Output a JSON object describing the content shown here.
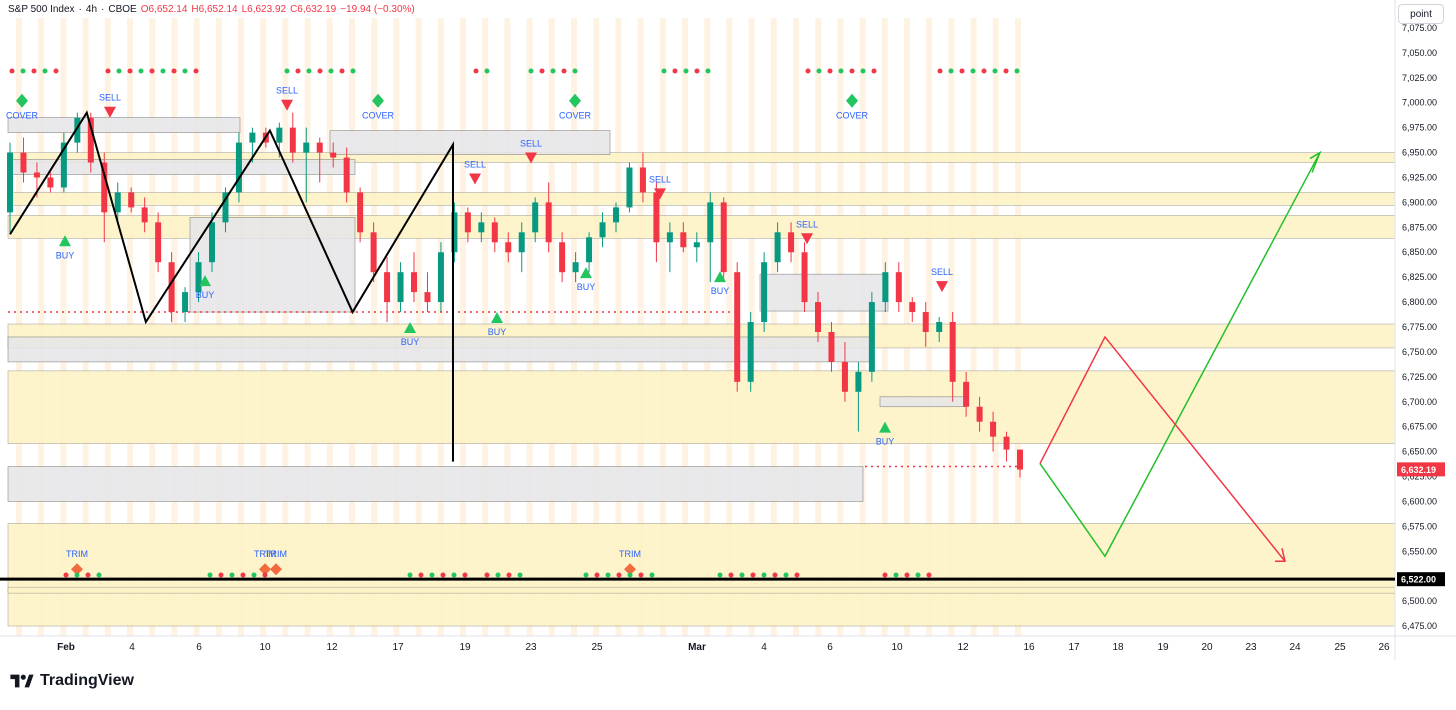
{
  "header": {
    "symbol": "S&P 500 Index",
    "interval": "4h",
    "exchange": "CBOE",
    "open": "O6,652.14",
    "high": "H6,652.14",
    "low": "L6,623.92",
    "close": "C6,632.19",
    "change": "−19.94 (−0.30%)"
  },
  "toolbar": {
    "scale_label": "point"
  },
  "brand": {
    "name": "TradingView"
  },
  "colors": {
    "up": "#089981",
    "down": "#f23645",
    "zone_yellow": "#fdf3c4",
    "zone_gray": "#e6e6e9",
    "zigzag": "#000000",
    "projection_green": "#22c02a",
    "projection_red": "#f23645",
    "support": "#000000"
  },
  "chart_data": {
    "type": "candlestick",
    "interval": "4h",
    "yaxis": {
      "ticks": [
        "7,075.00",
        "7,050.00",
        "7,025.00",
        "7,000.00",
        "6,975.00",
        "6,950.00",
        "6,925.00",
        "6,900.00",
        "6,875.00",
        "6,850.00",
        "6,825.00",
        "6,800.00",
        "6,775.00",
        "6,750.00",
        "6,725.00",
        "6,700.00",
        "6,675.00",
        "6,650.00",
        "6,625.00",
        "6,600.00",
        "6,575.00",
        "6,550.00",
        "6,525.00",
        "6,500.00",
        "6,475.00"
      ],
      "range": [
        6465,
        7085
      ],
      "last_price_label": "6,632.19",
      "support_label": "6,522.00"
    },
    "xaxis": {
      "labels": [
        "Feb",
        "4",
        "6",
        "10",
        "12",
        "17",
        "19",
        "23",
        "25",
        "Mar",
        "4",
        "6",
        "10",
        "12",
        "16",
        "17",
        "18",
        "19",
        "20",
        "23",
        "24",
        "25",
        "26"
      ]
    },
    "candles": [
      [
        6890,
        6960,
        6870,
        6950
      ],
      [
        6950,
        6965,
        6920,
        6930
      ],
      [
        6930,
        6940,
        6905,
        6925
      ],
      [
        6925,
        6930,
        6910,
        6915
      ],
      [
        6915,
        6970,
        6910,
        6960
      ],
      [
        6960,
        6990,
        6950,
        6985
      ],
      [
        6985,
        6990,
        6930,
        6940
      ],
      [
        6940,
        6950,
        6860,
        6890
      ],
      [
        6890,
        6920,
        6880,
        6910
      ],
      [
        6910,
        6915,
        6890,
        6895
      ],
      [
        6895,
        6905,
        6870,
        6880
      ],
      [
        6880,
        6890,
        6830,
        6840
      ],
      [
        6840,
        6850,
        6780,
        6790
      ],
      [
        6790,
        6815,
        6780,
        6810
      ],
      [
        6810,
        6850,
        6800,
        6840
      ],
      [
        6840,
        6890,
        6830,
        6880
      ],
      [
        6880,
        6915,
        6870,
        6910
      ],
      [
        6910,
        6970,
        6900,
        6960
      ],
      [
        6960,
        6975,
        6940,
        6970
      ],
      [
        6970,
        6975,
        6955,
        6960
      ],
      [
        6960,
        6980,
        6945,
        6975
      ],
      [
        6975,
        6990,
        6940,
        6950
      ],
      [
        6950,
        6975,
        6900,
        6960
      ],
      [
        6960,
        6965,
        6920,
        6950
      ],
      [
        6950,
        6960,
        6935,
        6945
      ],
      [
        6945,
        6955,
        6900,
        6910
      ],
      [
        6910,
        6915,
        6860,
        6870
      ],
      [
        6870,
        6880,
        6820,
        6830
      ],
      [
        6830,
        6845,
        6780,
        6800
      ],
      [
        6800,
        6840,
        6790,
        6830
      ],
      [
        6830,
        6850,
        6800,
        6810
      ],
      [
        6810,
        6830,
        6790,
        6800
      ],
      [
        6800,
        6860,
        6790,
        6850
      ],
      [
        6850,
        6900,
        6840,
        6890
      ],
      [
        6890,
        6895,
        6860,
        6870
      ],
      [
        6870,
        6890,
        6860,
        6880
      ],
      [
        6880,
        6885,
        6850,
        6860
      ],
      [
        6860,
        6870,
        6840,
        6850
      ],
      [
        6850,
        6880,
        6830,
        6870
      ],
      [
        6870,
        6905,
        6860,
        6900
      ],
      [
        6900,
        6920,
        6850,
        6860
      ],
      [
        6860,
        6870,
        6820,
        6830
      ],
      [
        6830,
        6850,
        6820,
        6840
      ],
      [
        6840,
        6870,
        6830,
        6865
      ],
      [
        6865,
        6890,
        6855,
        6880
      ],
      [
        6880,
        6900,
        6870,
        6895
      ],
      [
        6895,
        6940,
        6890,
        6935
      ],
      [
        6935,
        6950,
        6900,
        6910
      ],
      [
        6910,
        6920,
        6840,
        6860
      ],
      [
        6860,
        6880,
        6830,
        6870
      ],
      [
        6870,
        6880,
        6850,
        6855
      ],
      [
        6855,
        6870,
        6840,
        6860
      ],
      [
        6860,
        6910,
        6820,
        6900
      ],
      [
        6900,
        6905,
        6820,
        6830
      ],
      [
        6830,
        6840,
        6710,
        6720
      ],
      [
        6720,
        6790,
        6710,
        6780
      ],
      [
        6780,
        6850,
        6770,
        6840
      ],
      [
        6840,
        6880,
        6830,
        6870
      ],
      [
        6870,
        6880,
        6840,
        6850
      ],
      [
        6850,
        6860,
        6790,
        6800
      ],
      [
        6800,
        6810,
        6760,
        6770
      ],
      [
        6770,
        6780,
        6730,
        6740
      ],
      [
        6740,
        6760,
        6700,
        6710
      ],
      [
        6710,
        6740,
        6670,
        6730
      ],
      [
        6730,
        6810,
        6720,
        6800
      ],
      [
        6800,
        6840,
        6790,
        6830
      ],
      [
        6830,
        6840,
        6790,
        6800
      ],
      [
        6800,
        6805,
        6780,
        6790
      ],
      [
        6790,
        6800,
        6755,
        6770
      ],
      [
        6770,
        6785,
        6760,
        6780
      ],
      [
        6780,
        6790,
        6700,
        6720
      ],
      [
        6720,
        6730,
        6685,
        6695
      ],
      [
        6695,
        6705,
        6670,
        6680
      ],
      [
        6680,
        6690,
        6650,
        6665
      ],
      [
        6665,
        6670,
        6640,
        6652
      ],
      [
        6652,
        6652,
        6624,
        6632
      ]
    ],
    "zigzag": [
      [
        0,
        6868
      ],
      [
        13,
        6990
      ],
      [
        23,
        6780
      ],
      [
        44,
        6972
      ],
      [
        58,
        6790
      ],
      [
        80,
        6958
      ],
      [
        94,
        6948
      ],
      [
        106,
        6818
      ],
      [
        134,
        6948
      ],
      [
        149,
        6832
      ],
      [
        153,
        6712
      ],
      [
        158,
        6883
      ],
      [
        164,
        6640
      ],
      [
        171,
        6840
      ]
    ],
    "projections": {
      "green": [
        [
          6638,
          "2025-03-16"
        ],
        [
          6545,
          "2025-03-18"
        ],
        [
          6950,
          "2025-03-25"
        ]
      ],
      "red": [
        [
          6638,
          "2025-03-16"
        ],
        [
          6765,
          "2025-03-18"
        ],
        [
          6540,
          "2025-03-26"
        ]
      ]
    },
    "zones_yellow": [
      [
        6950,
        6940
      ],
      [
        6910,
        6897
      ],
      [
        6887,
        6864
      ],
      [
        6778,
        6754
      ],
      [
        6731,
        6658
      ],
      [
        6578,
        6475
      ],
      [
        6514,
        6508
      ]
    ],
    "zones_gray": [
      [
        6985,
        6970
      ],
      [
        6972,
        6948
      ],
      [
        6943,
        6928
      ],
      [
        6885,
        6790
      ],
      [
        6828,
        6791
      ],
      [
        6765,
        6740
      ],
      [
        6705,
        6695
      ],
      [
        6635,
        6600
      ]
    ],
    "signals": [
      {
        "label": "BUY",
        "value": 6862
      },
      {
        "label": "BUY",
        "value": 6822
      },
      {
        "label": "BUY",
        "value": 6775
      },
      {
        "label": "BUY",
        "value": 6785
      },
      {
        "label": "BUY",
        "value": 6830
      },
      {
        "label": "BUY",
        "value": 6826
      },
      {
        "label": "BUY",
        "value": 6675
      },
      {
        "label": "SELL",
        "value": 6990
      },
      {
        "label": "SELL",
        "value": 6997
      },
      {
        "label": "SELL",
        "value": 6923
      },
      {
        "label": "SELL",
        "value": 6944
      },
      {
        "label": "SELL",
        "value": 6908
      },
      {
        "label": "SELL",
        "value": 6863
      },
      {
        "label": "SELL",
        "value": 6815
      },
      {
        "label": "COVER",
        "value": 7002
      },
      {
        "label": "COVER",
        "value": 7002
      },
      {
        "label": "COVER",
        "value": 7002
      },
      {
        "label": "COVER",
        "value": 7002
      },
      {
        "label": "TRIM",
        "value": 6545
      },
      {
        "label": "TRIM",
        "value": 6545
      },
      {
        "label": "TRIM",
        "value": 6545
      },
      {
        "label": "TRIM",
        "value": 6545
      }
    ],
    "support_line": 6522,
    "last_price": 6632.19
  }
}
